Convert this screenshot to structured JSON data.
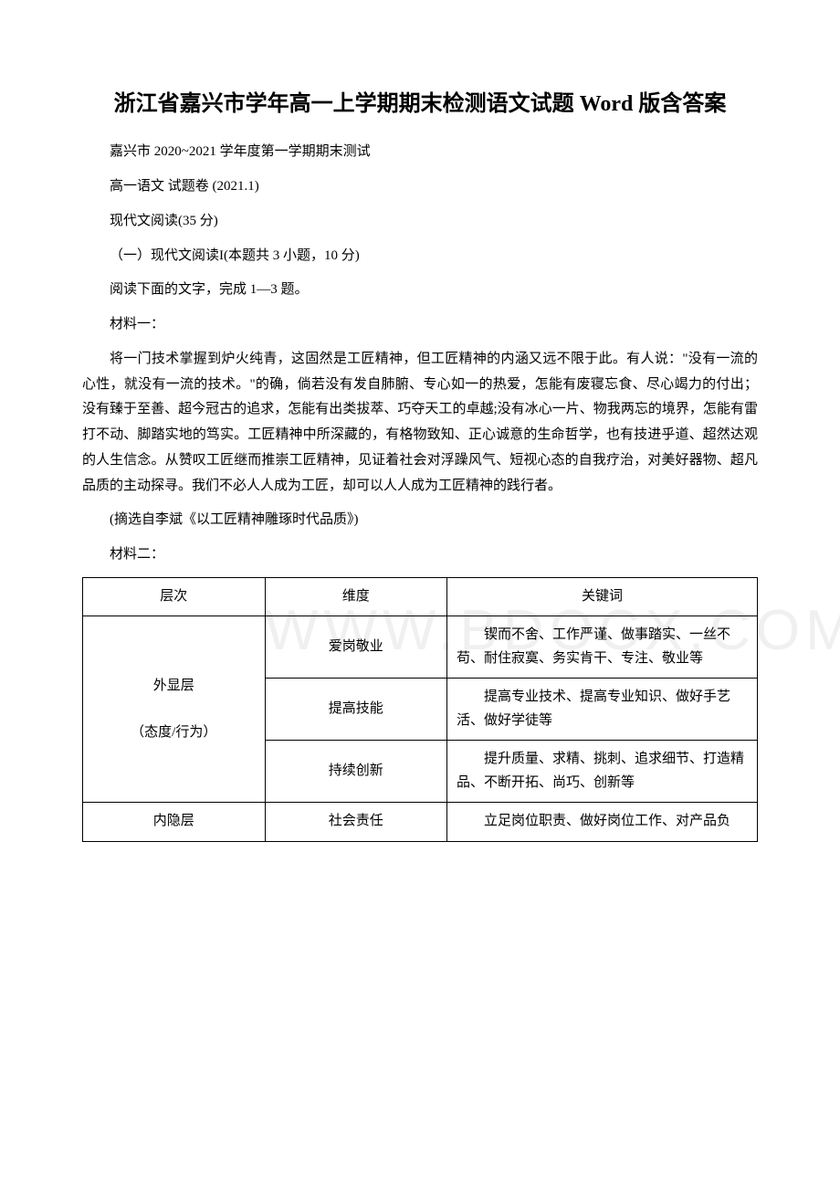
{
  "title": "浙江省嘉兴市学年高一上学期期末检测语文试题 Word 版含答案",
  "subtitle": "嘉兴市 2020~2021 学年度第一学期期末测试",
  "exam_info": "高一语文 试题卷 (2021.1)",
  "section_reading": "现代文阅读(35 分)",
  "section_reading_sub": "（一）现代文阅读I(本题共 3 小题，10 分)",
  "instruction": "阅读下面的文字，完成 1—3 题。",
  "material1_label": "材料一：",
  "material1_body": "将一门技术掌握到炉火纯青，这固然是工匠精神，但工匠精神的内涵又远不限于此。有人说：\"没有一流的心性，就没有一流的技术。\"的确，倘若没有发自肺腑、专心如一的热爱，怎能有废寝忘食、尽心竭力的付出；没有臻于至善、超今冠古的追求，怎能有出类拔萃、巧夺天工的卓越;没有冰心一片、物我两忘的境界，怎能有雷打不动、脚踏实地的笃实。工匠精神中所深藏的，有格物致知、正心诚意的生命哲学，也有技进乎道、超然达观的人生信念。从赞叹工匠继而推崇工匠精神，见证着社会对浮躁风气、短视心态的自我疗治，对美好器物、超凡品质的主动探寻。我们不必人人成为工匠，却可以人人成为工匠精神的践行者。",
  "material1_source": "(摘选自李斌《以工匠精神雕琢时代品质》)",
  "material2_label": "材料二：",
  "watermark_text": "WWW.BDOCX.COM",
  "table": {
    "headers": [
      "层次",
      "维度",
      "关键词"
    ],
    "rows": [
      {
        "col1": "外显层\n（态度/行为）",
        "col1_rowspan": 3,
        "col2": "爱岗敬业",
        "col3": "锲而不舍、工作严谨、做事踏实、一丝不苟、耐住寂寞、务实肯干、专注、敬业等"
      },
      {
        "col2": "提高技能",
        "col3": "提高专业技术、提高专业知识、做好手艺活、做好学徒等"
      },
      {
        "col2": "持续创新",
        "col3": "提升质量、求精、挑刺、追求细节、打造精品、不断开拓、尚巧、创新等"
      },
      {
        "col1": "内隐层",
        "col2": "社会责任",
        "col3": "立足岗位职责、做好岗位工作、对产品负"
      }
    ],
    "styling": {
      "border_color": "#000000",
      "border_width": 1,
      "font_size": 15,
      "col_widths": [
        "27%",
        "27%",
        "46%"
      ],
      "col3_indent": "2em"
    }
  },
  "fonts": {
    "body_family": "SimSun",
    "body_size": 15,
    "title_size": 24,
    "title_weight": "bold"
  },
  "colors": {
    "background": "#ffffff",
    "text": "#000000",
    "watermark": "#f0f0f0",
    "table_border": "#000000"
  }
}
